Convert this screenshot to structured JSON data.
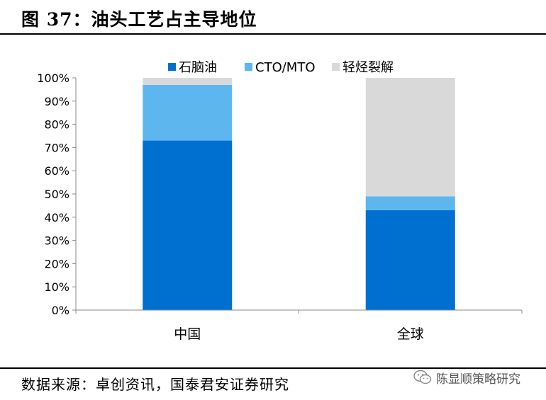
{
  "figure": {
    "title": "图 37：油头工艺占主导地位",
    "source": "数据来源：卓创资讯，国泰君安证券研究",
    "watermark": "陈显顺策略研究",
    "watermark_icon": "wechat-icon"
  },
  "chart_data": {
    "type": "bar",
    "stacked": true,
    "categories": [
      "中国",
      "全球"
    ],
    "series": [
      {
        "name": "石脑油",
        "values": [
          73,
          43
        ],
        "color": "#0070d0"
      },
      {
        "name": "CTO/MTO",
        "values": [
          24,
          6
        ],
        "color": "#5db7ee"
      },
      {
        "name": "轻烃裂解",
        "values": [
          3,
          51
        ],
        "color": "#d9d9d9"
      }
    ],
    "ylim": [
      0,
      100
    ],
    "yticks": [
      0,
      10,
      20,
      30,
      40,
      50,
      60,
      70,
      80,
      90,
      100
    ],
    "ytick_format": "percent",
    "title": "",
    "xlabel": "",
    "ylabel": "",
    "grid": false,
    "legend": "top"
  }
}
